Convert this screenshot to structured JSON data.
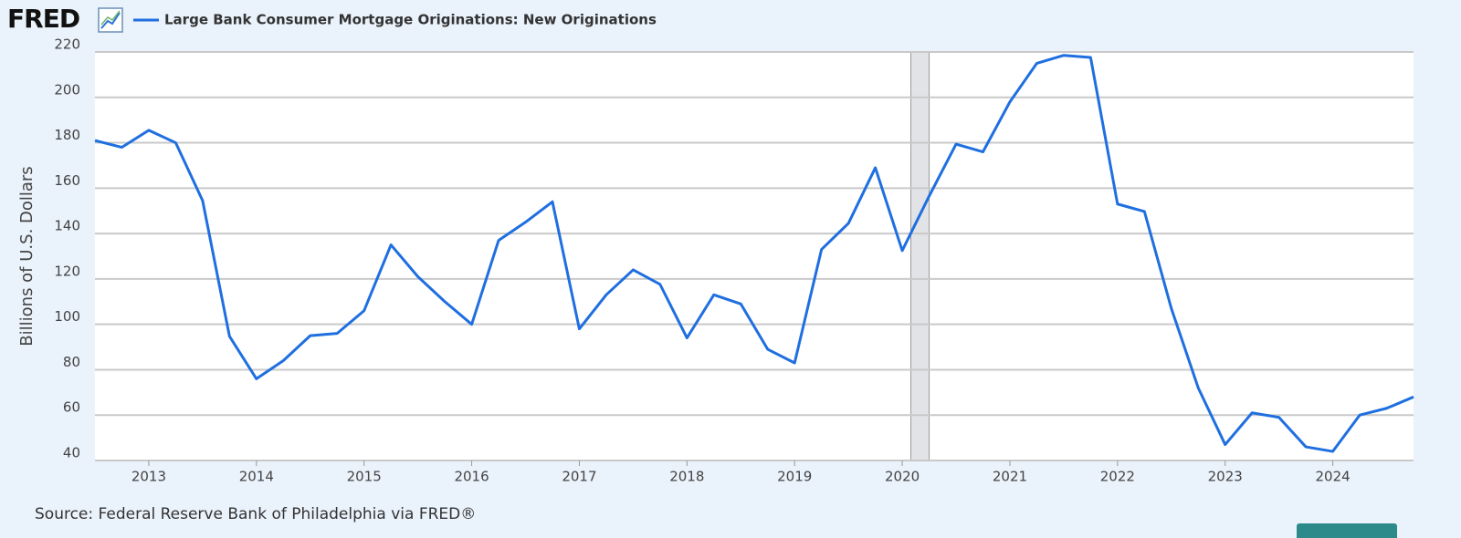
{
  "logo": "FRED",
  "chart_data": {
    "type": "line",
    "source": "Source: Federal Reserve Bank of Philadelphia via FRED®",
    "y_label": "Billions of U.S. Dollars",
    "x": [
      2012.5,
      2012.75,
      2013,
      2013.25,
      2013.5,
      2013.75,
      2014,
      2014.25,
      2014.5,
      2014.75,
      2015,
      2015.25,
      2015.5,
      2015.75,
      2016,
      2016.25,
      2016.5,
      2016.75,
      2017,
      2017.25,
      2017.5,
      2017.75,
      2018,
      2018.25,
      2018.5,
      2018.75,
      2019,
      2019.25,
      2019.5,
      2019.75,
      2020,
      2020.25,
      2020.5,
      2020.75,
      2021,
      2021.25,
      2021.5,
      2021.75,
      2022,
      2022.25,
      2022.5,
      2022.75,
      2023,
      2023.25,
      2023.5,
      2023.75,
      2024,
      2024.25,
      2024.5,
      2024.75
    ],
    "series": [
      {
        "name": "Large Bank Consumer Mortgage Originations: New Originations",
        "color": "#1f6fe0",
        "values": [
          181,
          178,
          185.5,
          180,
          154.5,
          94.7,
          76,
          84,
          95,
          96,
          106,
          135,
          121,
          110,
          100,
          137,
          145,
          154,
          98,
          113,
          124,
          117.6,
          94,
          113,
          109,
          89,
          83,
          133,
          144.5,
          169,
          132.5,
          156.5,
          179.4,
          176,
          198,
          215,
          218.5,
          217.6,
          153,
          149.7,
          107,
          72,
          47,
          61,
          59,
          46,
          44,
          60,
          63,
          68
        ]
      }
    ],
    "xlim": [
      2012.5,
      2024.75
    ],
    "xticks": [
      2013,
      2014,
      2015,
      2016,
      2017,
      2018,
      2019,
      2020,
      2021,
      2022,
      2023,
      2024
    ],
    "ylim": [
      40,
      220
    ],
    "yticks": [
      40,
      60,
      80,
      100,
      120,
      140,
      160,
      180,
      200,
      220
    ],
    "shaded_ranges": [
      {
        "start": 2020.08,
        "end": 2020.25
      }
    ],
    "grid": true
  }
}
